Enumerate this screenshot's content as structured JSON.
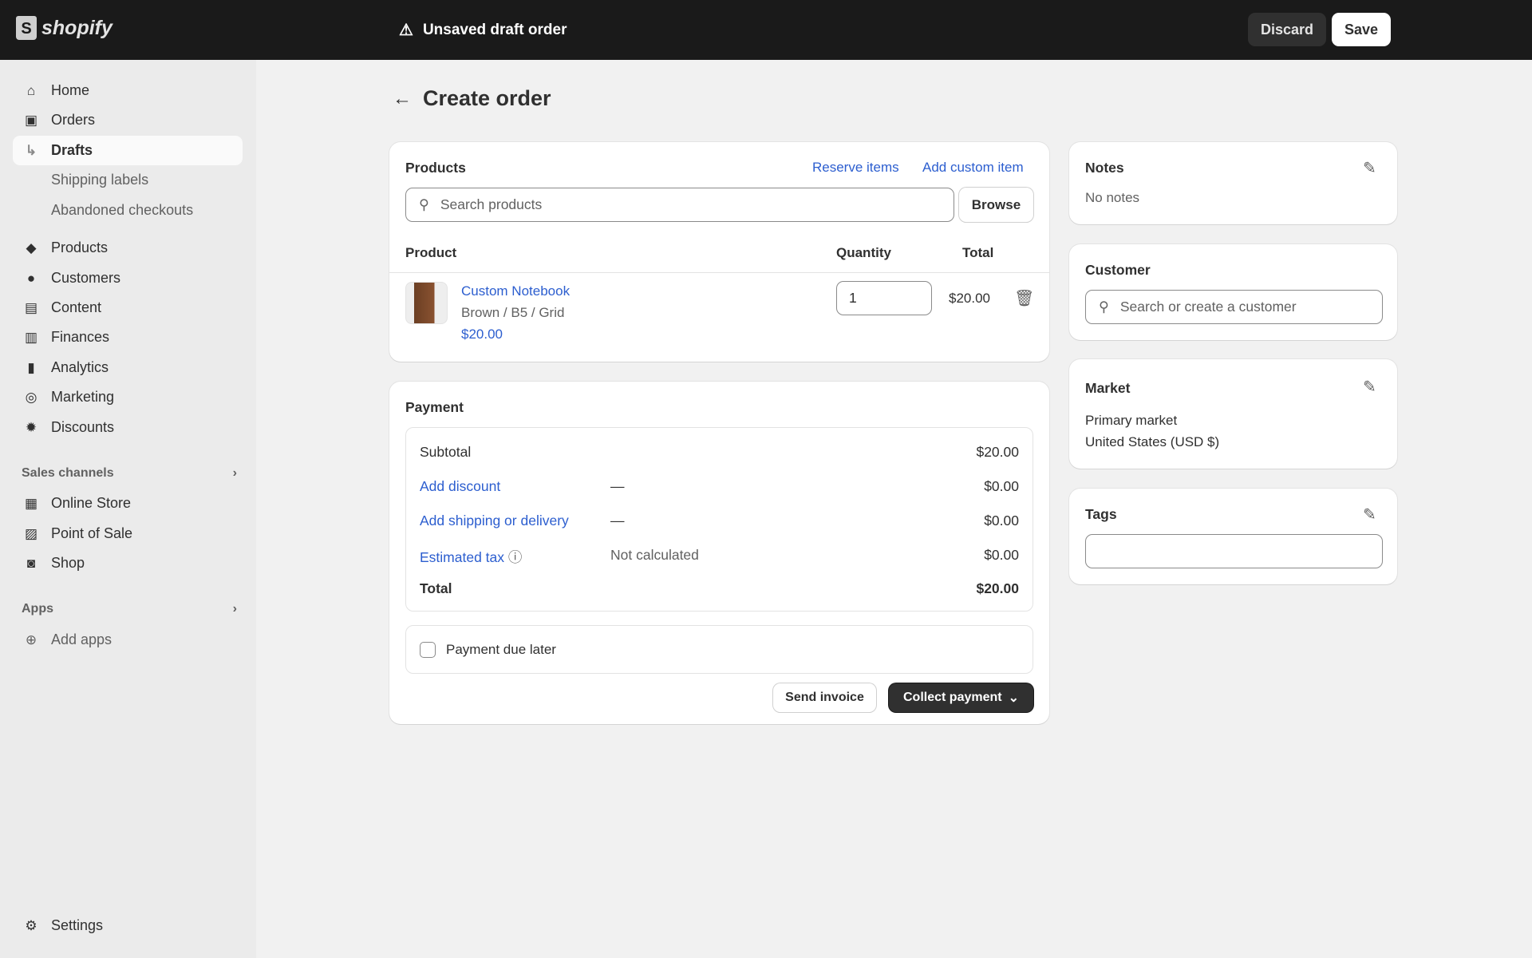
{
  "topbar": {
    "brand": "shopify",
    "status": "Unsaved draft order",
    "discard": "Discard",
    "save": "Save"
  },
  "sidebar": {
    "items": [
      {
        "label": "Home",
        "icon": "home-icon",
        "glyph": "⌂"
      },
      {
        "label": "Orders",
        "icon": "inbox-icon",
        "glyph": "▣"
      },
      {
        "label": "Drafts"
      },
      {
        "label": "Shipping labels"
      },
      {
        "label": "Abandoned checkouts"
      },
      {
        "label": "Products",
        "icon": "tag-icon",
        "glyph": "◆"
      },
      {
        "label": "Customers",
        "icon": "person-icon",
        "glyph": "●"
      },
      {
        "label": "Content",
        "icon": "image-icon",
        "glyph": "▤"
      },
      {
        "label": "Finances",
        "icon": "bank-icon",
        "glyph": "▥"
      },
      {
        "label": "Analytics",
        "icon": "bar-chart-icon",
        "glyph": "▮"
      },
      {
        "label": "Marketing",
        "icon": "target-icon",
        "glyph": "◎"
      },
      {
        "label": "Discounts",
        "icon": "discount-icon",
        "glyph": "✹"
      }
    ],
    "sales_channels": {
      "title": "Sales channels",
      "items": [
        {
          "label": "Online Store",
          "glyph": "▦"
        },
        {
          "label": "Point of Sale",
          "glyph": "▨"
        },
        {
          "label": "Shop",
          "glyph": "◙"
        }
      ]
    },
    "apps": {
      "title": "Apps",
      "add": "Add apps"
    },
    "settings": "Settings"
  },
  "page": {
    "title": "Create order"
  },
  "products": {
    "title": "Products",
    "reserve": "Reserve items",
    "add_custom": "Add custom item",
    "search_placeholder": "Search products",
    "browse": "Browse",
    "headers": {
      "product": "Product",
      "quantity": "Quantity",
      "total": "Total"
    },
    "line": {
      "name": "Custom Notebook",
      "variant": "Brown / B5 / Grid",
      "price": "$20.00",
      "quantity": "1",
      "total": "$20.00"
    }
  },
  "payment": {
    "title": "Payment",
    "subtotal": {
      "label": "Subtotal",
      "value": "$20.00"
    },
    "discount": {
      "label": "Add discount",
      "detail": "—",
      "value": "$0.00"
    },
    "shipping": {
      "label": "Add shipping or delivery",
      "detail": "—",
      "value": "$0.00"
    },
    "tax": {
      "label": "Estimated tax",
      "detail": "Not calculated",
      "value": "$0.00"
    },
    "total": {
      "label": "Total",
      "value": "$20.00"
    },
    "due_later": "Payment due later",
    "due_later_checked": false,
    "send_invoice": "Send invoice",
    "collect": "Collect payment"
  },
  "notes": {
    "title": "Notes",
    "value": "No notes"
  },
  "customer": {
    "title": "Customer",
    "placeholder": "Search or create a customer"
  },
  "market": {
    "title": "Market",
    "name": "Primary market",
    "detail": "United States (USD $)"
  },
  "tags": {
    "title": "Tags",
    "value": ""
  }
}
